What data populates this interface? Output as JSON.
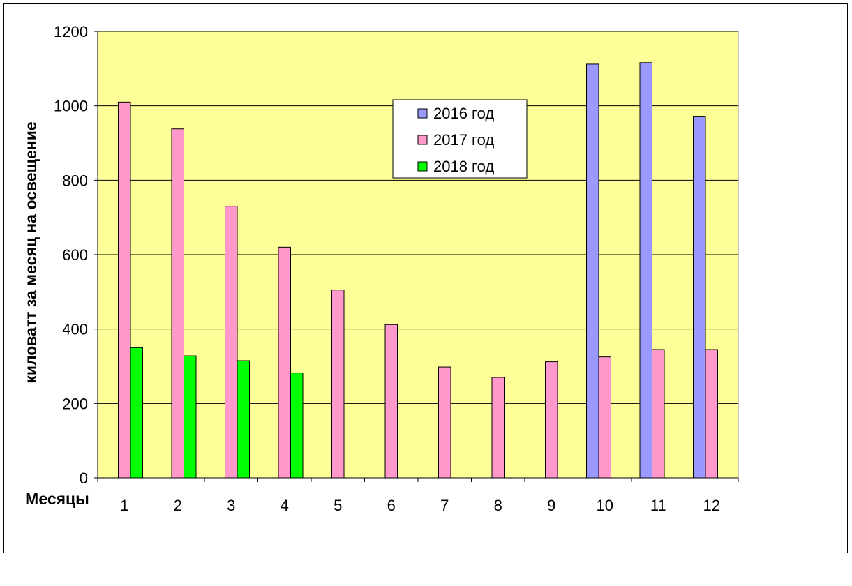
{
  "chart_data": {
    "type": "bar",
    "title": "",
    "xlabel": "Месяцы",
    "ylabel": "киловатт  за месяц  на освещение",
    "ylim": [
      0,
      1200
    ],
    "yticks": [
      0,
      200,
      400,
      600,
      800,
      1000,
      1200
    ],
    "grid": true,
    "legend_position": "top-center",
    "plot_background": "#ffff99",
    "categories": [
      "1",
      "2",
      "3",
      "4",
      "5",
      "6",
      "7",
      "8",
      "9",
      "10",
      "11",
      "12"
    ],
    "series": [
      {
        "name": "2016 год",
        "color": "#9999ff",
        "values": [
          null,
          null,
          null,
          null,
          null,
          null,
          null,
          null,
          null,
          1112,
          1116,
          972
        ]
      },
      {
        "name": "2017 год",
        "color": "#ff99cc",
        "values": [
          1010,
          938,
          730,
          620,
          505,
          412,
          298,
          270,
          312,
          325,
          345,
          345
        ]
      },
      {
        "name": "2018 год",
        "color": "#00ff00",
        "values": [
          350,
          328,
          315,
          282,
          null,
          null,
          null,
          null,
          null,
          null,
          null,
          null
        ]
      }
    ]
  }
}
